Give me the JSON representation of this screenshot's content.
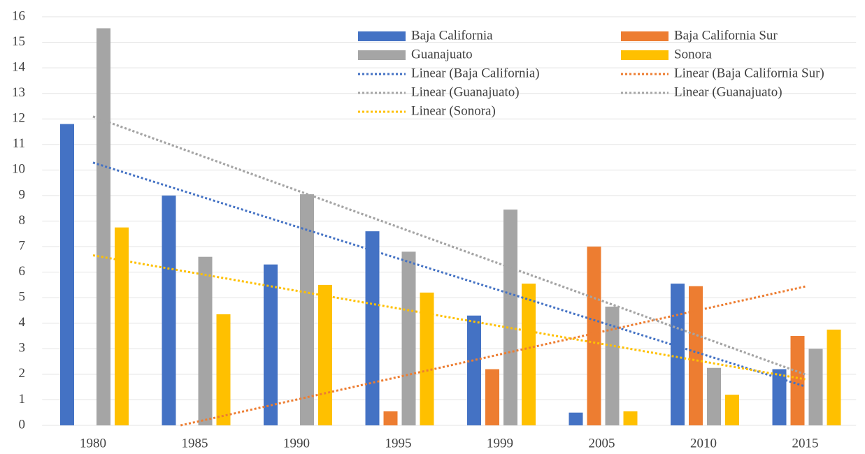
{
  "chart_data": {
    "type": "bar",
    "categories": [
      "1980",
      "1985",
      "1990",
      "1995",
      "1999",
      "2005",
      "2010",
      "2015"
    ],
    "series": [
      {
        "name": "Baja California",
        "color": "#4472c4",
        "values": [
          11.8,
          9.0,
          6.3,
          7.6,
          4.3,
          0.5,
          5.55,
          2.2
        ]
      },
      {
        "name": "Baja California Sur",
        "color": "#ed7d31",
        "values": [
          0,
          0,
          0,
          0.55,
          2.2,
          7.0,
          5.45,
          3.5
        ]
      },
      {
        "name": "Guanajuato",
        "color": "#a5a5a5",
        "values": [
          15.55,
          6.6,
          9.05,
          6.8,
          8.45,
          4.65,
          2.25,
          3.0
        ]
      },
      {
        "name": "Sonora",
        "color": "#ffc000",
        "values": [
          7.75,
          4.35,
          5.5,
          5.2,
          5.55,
          0.55,
          1.2,
          3.75
        ]
      }
    ],
    "trendlines": [
      {
        "name": "Linear (Baja California)",
        "color": "#4472c4",
        "type": "linear"
      },
      {
        "name": "Linear (Baja California Sur)",
        "color": "#ed7d31",
        "type": "linear"
      },
      {
        "name": "Linear (Guanajuato)",
        "color": "#a5a5a5",
        "type": "linear"
      },
      {
        "name": "Linear (Guanajuato)",
        "color": "#a5a5a5",
        "type": "linear"
      },
      {
        "name": "Linear (Sonora)",
        "color": "#ffc000",
        "type": "linear"
      }
    ],
    "ylim": [
      0,
      16
    ],
    "yticks": [
      0,
      1,
      2,
      3,
      4,
      5,
      6,
      7,
      8,
      9,
      10,
      11,
      12,
      13,
      14,
      15,
      16
    ],
    "grid": true
  }
}
